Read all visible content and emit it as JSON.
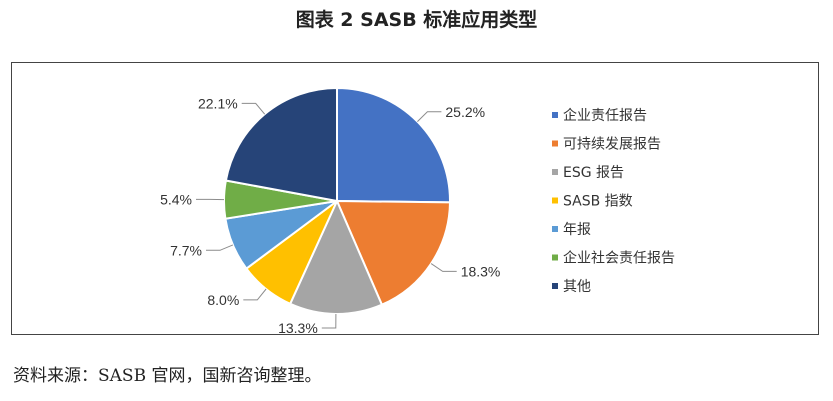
{
  "chart_data": {
    "type": "pie",
    "title": "图表 2 SASB 标准应用类型",
    "slices": [
      {
        "label": "企业责任报告",
        "value": 25.2,
        "text": "25.2%",
        "color": "#4472C4"
      },
      {
        "label": "可持续发展报告",
        "value": 18.3,
        "text": "18.3%",
        "color": "#ED7D31"
      },
      {
        "label": "ESG 报告",
        "value": 13.3,
        "text": "13.3%",
        "color": "#A5A5A5"
      },
      {
        "label": "SASB 指数",
        "value": 8.0,
        "text": "8.0%",
        "color": "#FFC000"
      },
      {
        "label": "年报",
        "value": 7.7,
        "text": "7.7%",
        "color": "#5B9BD5"
      },
      {
        "label": "企业社会责任报告",
        "value": 5.4,
        "text": "5.4%",
        "color": "#70AD47"
      },
      {
        "label": "其他",
        "value": 22.1,
        "text": "22.1%",
        "color": "#264478"
      }
    ],
    "legend_position": "right"
  },
  "source": "资料来源：SASB 官网，国新咨询整理。"
}
